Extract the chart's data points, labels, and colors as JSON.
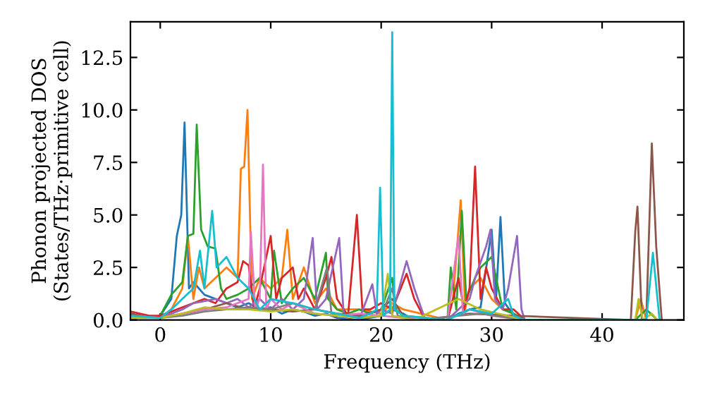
{
  "chart_data": {
    "type": "line",
    "xlabel": "Frequency (THz)",
    "ylabel": "Phonon projected DOS\n(States/THz·primitive cell)",
    "xlim": [
      -2.7,
      47.4
    ],
    "ylim": [
      0,
      14.2
    ],
    "xticks": [
      0,
      10,
      20,
      30,
      40
    ],
    "yticks": [
      {
        "value": 0,
        "label": "0.0"
      },
      {
        "value": 2.5,
        "label": "2.5"
      },
      {
        "value": 5,
        "label": "5.0"
      },
      {
        "value": 7.5,
        "label": "7.5"
      },
      {
        "value": 10,
        "label": "10.0"
      },
      {
        "value": 12.5,
        "label": "12.5"
      }
    ],
    "grid": false,
    "marker": "none",
    "line_style": "solid",
    "series": [
      {
        "color": "#1f77b4",
        "x": [
          -2.7,
          -1,
          0,
          1,
          1.5,
          1.9,
          2.2,
          2.6,
          3,
          4,
          5,
          6,
          7,
          8,
          9,
          10,
          11,
          12,
          13,
          14,
          15,
          16,
          18,
          20,
          21,
          22,
          23,
          26,
          27,
          28,
          29,
          30,
          30.4,
          30.8,
          31.2,
          32,
          33
        ],
        "values": [
          0.3,
          0.1,
          0.2,
          1.0,
          4.0,
          5.0,
          9.4,
          1.5,
          1.8,
          1.2,
          1.0,
          0.8,
          0.6,
          0.8,
          0.5,
          0.6,
          0.3,
          0.5,
          0.4,
          0.2,
          0.3,
          0.1,
          0.0,
          0.2,
          0.5,
          0.3,
          0.0,
          0.0,
          0.3,
          0.5,
          0.6,
          4.3,
          1.0,
          4.9,
          0.8,
          0.2,
          0.0
        ]
      },
      {
        "color": "#ff7f0e",
        "x": [
          0,
          1,
          2,
          2.5,
          3,
          3.5,
          4,
          5,
          6,
          7,
          7.3,
          7.6,
          7.9,
          8.3,
          9,
          10,
          11,
          11.5,
          12,
          13,
          14,
          15,
          16,
          17,
          18,
          20,
          21,
          22,
          26,
          26.5,
          27.2,
          27.6,
          28,
          29,
          30,
          31,
          32,
          33,
          43,
          43.5,
          44
        ],
        "values": [
          0.1,
          0.5,
          1.5,
          4.0,
          1.0,
          2.5,
          1.5,
          2.0,
          2.5,
          2.0,
          7.2,
          7.3,
          10.0,
          1.0,
          2.0,
          1.5,
          2.0,
          4.3,
          1.0,
          2.5,
          0.8,
          1.5,
          0.5,
          0.5,
          0.5,
          0.3,
          0.8,
          0.5,
          0.0,
          1.0,
          5.7,
          0.5,
          1.5,
          2.0,
          1.0,
          0.5,
          0.3,
          0.0,
          0.0,
          1.0,
          0.0
        ]
      },
      {
        "color": "#2ca02c",
        "x": [
          -2.7,
          -1,
          0,
          1,
          2,
          2.5,
          3,
          3.3,
          3.7,
          4.3,
          5,
          5.5,
          6,
          7,
          8,
          9,
          10,
          10.3,
          11,
          12,
          13,
          14,
          15,
          15.2,
          16,
          17,
          18,
          19,
          20,
          21,
          21.3,
          22,
          26,
          26.3,
          26.8,
          27.3,
          27.7,
          28.5,
          29,
          30,
          31,
          32,
          33,
          43,
          44,
          45
        ],
        "values": [
          0.3,
          0.1,
          0.2,
          1.2,
          1.8,
          4.0,
          4.1,
          9.3,
          4.3,
          3.5,
          3.4,
          1.5,
          1.0,
          1.2,
          1.5,
          2.0,
          1.0,
          3.3,
          0.8,
          1.5,
          2.0,
          1.0,
          3.2,
          1.0,
          0.5,
          0.3,
          0.5,
          0.3,
          0.5,
          2.0,
          0.5,
          0.2,
          0.0,
          2.5,
          0.5,
          5.2,
          1.0,
          2.0,
          2.5,
          3.0,
          0.5,
          0.3,
          0.0,
          0.0,
          0.5,
          0.0
        ]
      },
      {
        "color": "#d62728",
        "x": [
          -2.7,
          -1,
          0,
          1,
          2,
          3,
          4,
          5,
          6,
          7,
          7.5,
          8,
          8.5,
          9,
          10,
          10.5,
          11,
          12,
          12.5,
          13,
          14,
          15,
          15.5,
          16,
          17,
          17.8,
          18.3,
          19,
          20,
          21,
          22.3,
          23,
          24,
          26,
          27,
          27.5,
          28,
          28.5,
          29,
          29.5,
          30,
          31,
          32,
          33
        ],
        "values": [
          0.4,
          0.2,
          0.2,
          0.4,
          0.6,
          0.8,
          1.0,
          0.8,
          1.5,
          1.8,
          2.8,
          2.6,
          0.5,
          1.5,
          4.0,
          1.0,
          2.0,
          2.5,
          1.0,
          1.5,
          0.5,
          2.0,
          3.0,
          1.0,
          0.2,
          5.0,
          0.5,
          0.5,
          0.8,
          0.5,
          2.2,
          1.0,
          0.0,
          0.0,
          2.0,
          0.5,
          1.5,
          7.3,
          1.0,
          2.5,
          1.5,
          0.5,
          0.5,
          0.0
        ]
      },
      {
        "color": "#9467bd",
        "x": [
          -2.7,
          -1,
          0,
          1,
          2,
          3,
          4,
          5,
          6,
          7,
          8,
          9,
          10,
          11,
          12,
          13,
          13.8,
          14.2,
          15,
          16.2,
          16.6,
          17,
          18,
          19.2,
          19.6,
          20,
          21,
          22.3,
          23,
          24,
          26,
          27,
          28,
          28.5,
          29.5,
          29.9,
          30.3,
          31,
          31.5,
          32.3,
          32.7,
          33
        ],
        "values": [
          0.2,
          0.1,
          0.1,
          0.3,
          0.5,
          0.8,
          0.9,
          1.0,
          0.8,
          1.0,
          0.6,
          1.0,
          0.5,
          1.0,
          0.5,
          1.0,
          3.9,
          0.5,
          1.0,
          3.9,
          0.3,
          0.0,
          0.0,
          1.7,
          0.3,
          0.5,
          0.3,
          2.8,
          1.5,
          0.0,
          0.0,
          0.5,
          1.0,
          2.0,
          3.5,
          4.3,
          1.0,
          0.5,
          1.5,
          4.0,
          0.5,
          0.0
        ]
      },
      {
        "color": "#8c564b",
        "x": [
          -2.7,
          -1,
          0,
          2,
          4,
          6,
          8,
          10,
          12,
          14,
          16,
          18,
          20,
          21,
          22,
          24,
          28,
          32,
          42.6,
          43,
          43.2,
          43.6,
          44,
          44.5,
          44.9,
          45.4
        ],
        "values": [
          0.3,
          0.1,
          0.1,
          0.3,
          0.5,
          0.8,
          0.5,
          0.5,
          0.4,
          0.5,
          0.3,
          0.2,
          0.5,
          1.0,
          0.2,
          0.0,
          0.3,
          0.2,
          0.0,
          4.2,
          5.4,
          0.0,
          0.0,
          8.4,
          3.5,
          0.0
        ]
      },
      {
        "color": "#e377c2",
        "x": [
          -2.7,
          0,
          2,
          4,
          6,
          7,
          8,
          8.2,
          8.6,
          9,
          9.3,
          9.6,
          10,
          11,
          12,
          14,
          16,
          18,
          20,
          22,
          26,
          27,
          27.4,
          28,
          30,
          33
        ],
        "values": [
          0.2,
          0.1,
          0.3,
          0.5,
          0.6,
          0.8,
          1.0,
          4.2,
          0.5,
          1.0,
          7.4,
          0.5,
          1.0,
          0.5,
          0.8,
          0.3,
          0.2,
          0.3,
          0.2,
          0.1,
          0.0,
          4.0,
          0.3,
          0.5,
          0.2,
          0.0
        ]
      },
      {
        "color": "#7f7f7f",
        "x": [
          -2.7,
          0,
          2,
          4,
          6,
          8,
          10,
          12,
          14,
          15.1,
          15.5,
          16,
          18,
          20,
          21,
          21.5,
          23,
          27,
          29,
          33
        ],
        "values": [
          0.1,
          0.1,
          0.2,
          0.4,
          0.5,
          0.6,
          0.5,
          0.8,
          0.5,
          2.5,
          0.3,
          0.3,
          0.1,
          0.2,
          1.5,
          0.2,
          0.0,
          0.2,
          0.3,
          0.0
        ]
      },
      {
        "color": "#bcbd22",
        "x": [
          -2.7,
          0,
          2,
          4,
          6,
          8,
          10,
          12,
          14,
          16,
          18,
          20,
          20.6,
          21,
          23,
          27,
          29,
          33,
          43,
          43.3,
          43.7,
          44.5,
          45
        ],
        "values": [
          0.1,
          0.1,
          0.3,
          0.6,
          0.5,
          0.5,
          0.4,
          0.5,
          0.3,
          0.2,
          0.1,
          0.2,
          2.2,
          0.2,
          0.0,
          1.0,
          0.5,
          0.0,
          0.0,
          1.0,
          0.0,
          0.3,
          0.0
        ]
      },
      {
        "color": "#17becf",
        "x": [
          -2.7,
          0,
          1,
          2,
          3,
          3.6,
          4,
          4.7,
          5.1,
          6,
          7,
          8,
          9,
          10,
          12,
          14,
          16,
          18,
          19,
          19.6,
          19.9,
          20.2,
          20.8,
          21.0,
          21.2,
          22,
          26,
          28,
          30,
          31.5,
          32,
          33,
          44,
          44.6,
          45.2
        ],
        "values": [
          0.2,
          0.1,
          0.5,
          1.0,
          1.5,
          3.3,
          1.5,
          5.2,
          2.5,
          3.0,
          2.0,
          1.5,
          0.5,
          1.0,
          0.8,
          0.5,
          0.3,
          0.1,
          0.3,
          0.5,
          6.3,
          0.2,
          0.5,
          13.7,
          0.5,
          0.2,
          0.0,
          0.5,
          0.3,
          1.0,
          0.2,
          0.0,
          0.0,
          3.2,
          0.0
        ]
      }
    ]
  }
}
